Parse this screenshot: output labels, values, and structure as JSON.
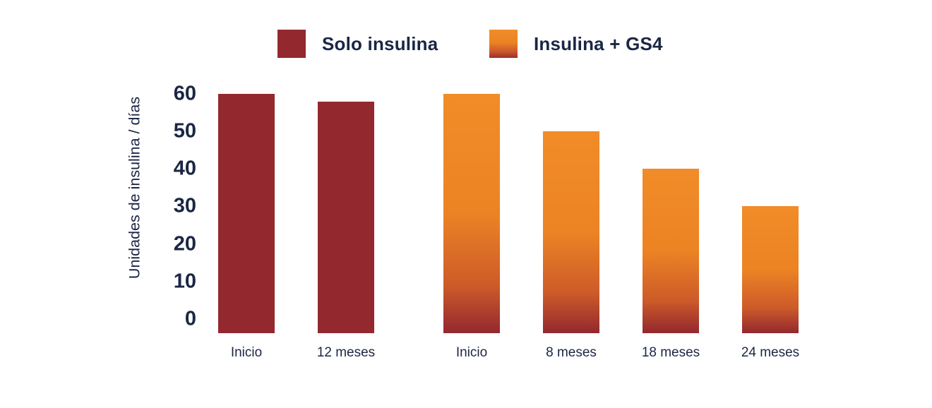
{
  "colors": {
    "text_navy": "#1B2645",
    "solo_insulina_red": "#93282F",
    "orange_top": "#F18C28",
    "orange_mid": "#EC8324",
    "gradient_bottom": "#93282F",
    "background": "#FFFFFF"
  },
  "legend": {
    "position": "top",
    "items": [
      {
        "label": "Solo insulina",
        "swatch": "solid-dark-red"
      },
      {
        "label": "Insulina + GS4",
        "swatch": "orange-to-red-gradient"
      }
    ]
  },
  "chart_data": {
    "type": "bar",
    "title": "",
    "xlabel": "",
    "ylabel": "Unidades de insulina / días",
    "yticks": [
      0,
      10,
      20,
      30,
      40,
      50,
      60
    ],
    "ylim": [
      0,
      60
    ],
    "grid": false,
    "legend_position": "top",
    "series": [
      {
        "name": "Solo insulina",
        "style": "solid",
        "color": "#93282F",
        "categories": [
          "Inicio",
          "12 meses"
        ],
        "values": [
          60,
          58
        ]
      },
      {
        "name": "Insulina + GS4",
        "style": "gradient",
        "color": "#EC8324",
        "categories": [
          "Inicio",
          "8 meses",
          "18 meses",
          "24 meses"
        ],
        "values": [
          60,
          50,
          40,
          30
        ]
      }
    ]
  }
}
